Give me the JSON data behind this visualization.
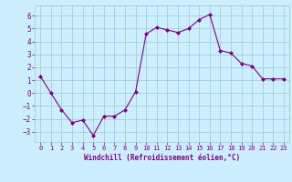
{
  "x": [
    0,
    1,
    2,
    3,
    4,
    5,
    6,
    7,
    8,
    9,
    10,
    11,
    12,
    13,
    14,
    15,
    16,
    17,
    18,
    19,
    20,
    21,
    22,
    23
  ],
  "y": [
    1.3,
    0.0,
    -1.3,
    -2.3,
    -2.1,
    -3.3,
    -1.8,
    -1.8,
    -1.3,
    0.1,
    4.6,
    5.1,
    4.9,
    4.7,
    5.0,
    5.7,
    6.1,
    3.3,
    3.1,
    2.3,
    2.1,
    1.1,
    1.1,
    1.1
  ],
  "line_color": "#800080",
  "marker": "D",
  "marker_size": 2,
  "background_color": "#cceeff",
  "grid_color": "#99cccc",
  "xlabel": "Windchill (Refroidissement éolien,°C)",
  "xlabel_color": "#800080",
  "tick_color": "#800080",
  "xlim": [
    -0.5,
    23.5
  ],
  "ylim": [
    -3.8,
    6.8
  ],
  "yticks": [
    -3,
    -2,
    -1,
    0,
    1,
    2,
    3,
    4,
    5,
    6
  ],
  "xticks": [
    0,
    1,
    2,
    3,
    4,
    5,
    6,
    7,
    8,
    9,
    10,
    11,
    12,
    13,
    14,
    15,
    16,
    17,
    18,
    19,
    20,
    21,
    22,
    23
  ]
}
